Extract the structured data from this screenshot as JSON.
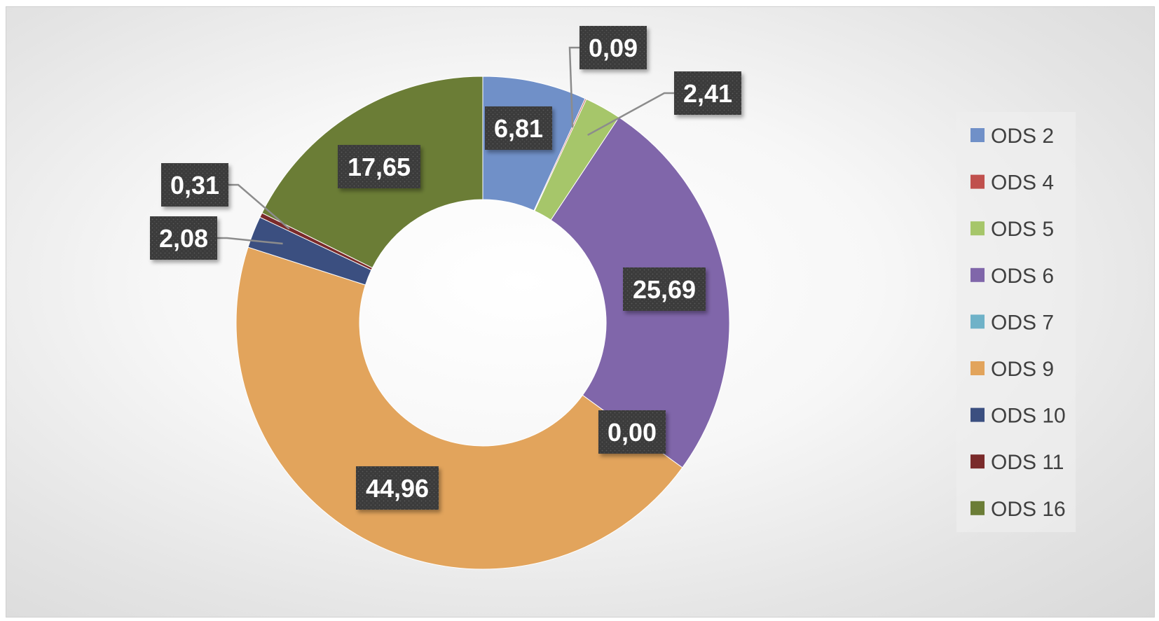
{
  "chart_data": {
    "type": "doughnut",
    "categories": [
      "ODS 2",
      "ODS 4",
      "ODS 5",
      "ODS 6",
      "ODS 7",
      "ODS 9",
      "ODS 10",
      "ODS 11",
      "ODS 16"
    ],
    "values": [
      6.81,
      0.09,
      2.41,
      25.69,
      0.0,
      44.96,
      2.08,
      0.31,
      17.65
    ],
    "data_labels": [
      "6,81",
      "0,09",
      "2,41",
      "25,69",
      "0,00",
      "44,96",
      "2,08",
      "0,31",
      "17,65"
    ],
    "colors": [
      "#7090c8",
      "#c0504d",
      "#a6c66a",
      "#8066aa",
      "#6fb2c8",
      "#e2a45c",
      "#3b4f80",
      "#7a2a2a",
      "#6b7d36"
    ],
    "legend_position": "right",
    "title": ""
  }
}
